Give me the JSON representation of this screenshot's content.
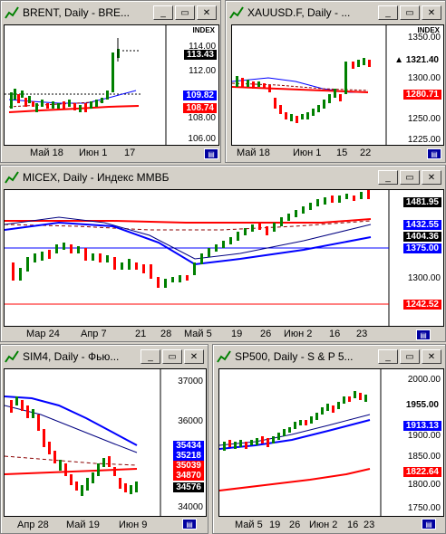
{
  "windows": [
    {
      "id": "brent",
      "title": "BRENT, Daily - BRE...",
      "index_label": "INDEX",
      "prices": [
        "114.00",
        "112.00",
        "110.00",
        "108.00",
        "106.00"
      ],
      "boxes": [
        {
          "v": "113.43",
          "bg": "#000000",
          "fg": "#ffffff"
        },
        {
          "v": "109.82",
          "bg": "#0000ff",
          "fg": "#ffffff"
        },
        {
          "v": "108.74",
          "bg": "#ff0000",
          "fg": "#ffffff"
        }
      ],
      "xlabels": [
        "Май 18",
        "Июн 1",
        "17"
      ]
    },
    {
      "id": "xau",
      "title": "XAUUSD.F, Daily - ...",
      "index_label": "INDEX",
      "prices": [
        "1350.00",
        "1300.00",
        "1275.00",
        "1250.00",
        "1225.00"
      ],
      "boxes": [
        {
          "v": "1321.40",
          "bg": "#ffffff",
          "fg": "#000000",
          "arrow": "▲"
        },
        {
          "v": "1280.71",
          "bg": "#ff0000",
          "fg": "#ffffff"
        }
      ],
      "xlabels": [
        "Май 18",
        "Июн 1",
        "15",
        "22"
      ]
    },
    {
      "id": "micex",
      "title": "MICEX, Daily - Индекс ММВБ",
      "prices": [
        "1300.00"
      ],
      "boxes": [
        {
          "v": "1481.95",
          "bg": "#000000",
          "fg": "#ffffff"
        },
        {
          "v": "1432.55",
          "bg": "#0000ff",
          "fg": "#ffffff"
        },
        {
          "v": "1404.36",
          "bg": "#000000",
          "fg": "#ffffff"
        },
        {
          "v": "1375.00",
          "bg": "#0000ff",
          "fg": "#ffffff"
        },
        {
          "v": "1242.52",
          "bg": "#ff0000",
          "fg": "#ffffff"
        }
      ],
      "xlabels": [
        "Мар 24",
        "Апр 7",
        "21",
        "28",
        "Май 5",
        "19",
        "26",
        "Июн 2",
        "16",
        "23"
      ]
    },
    {
      "id": "sim4",
      "title": "SIM4, Daily - Фью...",
      "prices": [
        "37000",
        "36000",
        "34000"
      ],
      "boxes": [
        {
          "v": "35434",
          "bg": "#0000ff",
          "fg": "#ffffff"
        },
        {
          "v": "35218",
          "bg": "#0000ff",
          "fg": "#ffffff"
        },
        {
          "v": "35039",
          "bg": "#ff0000",
          "fg": "#ffffff"
        },
        {
          "v": "34870",
          "bg": "#ff0000",
          "fg": "#ffffff"
        },
        {
          "v": "34576",
          "bg": "#000000",
          "fg": "#ffffff"
        }
      ],
      "xlabels": [
        "Апр 28",
        "Май 19",
        "Июн 9"
      ]
    },
    {
      "id": "sp500",
      "title": "SP500, Daily - S & P 5...",
      "prices": [
        "2000.00",
        "1900.00",
        "1850.00",
        "1800.00",
        "1750.00"
      ],
      "boxes": [
        {
          "v": "1955.00",
          "bg": "#ffffff",
          "fg": "#000000"
        },
        {
          "v": "1913.13",
          "bg": "#0000ff",
          "fg": "#ffffff"
        },
        {
          "v": "1822.64",
          "bg": "#ff0000",
          "fg": "#ffffff"
        }
      ],
      "xlabels": [
        "Май 5",
        "19",
        "26",
        "Июн 2",
        "16",
        "23"
      ]
    }
  ],
  "buttons": {
    "minimize": "_",
    "restore": "▭",
    "close": "✕"
  },
  "icons": {
    "window": "chart-window-icon",
    "scroll": "calendar-icon"
  },
  "colors": {
    "candle_up": "#008000",
    "candle_down": "#ff0000",
    "ma_blue": "#0000ff",
    "ma_red": "#ff0000",
    "ma_navy": "#000080"
  }
}
